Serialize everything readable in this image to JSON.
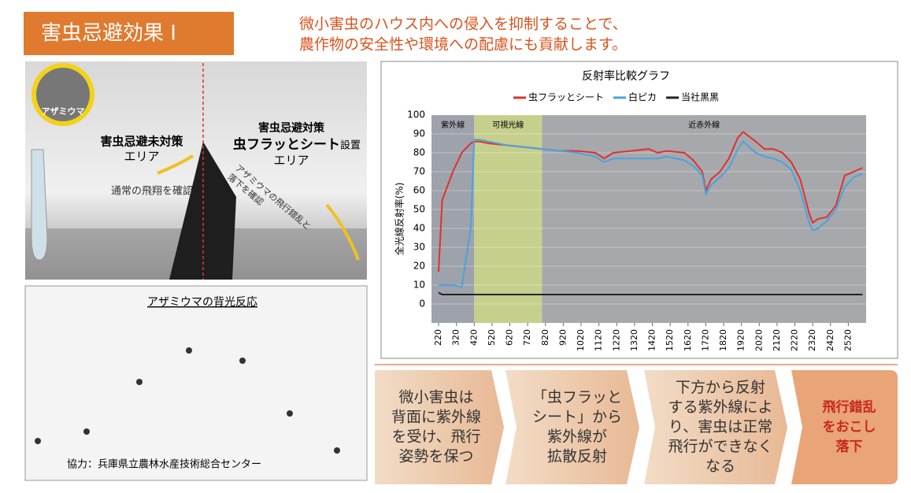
{
  "header": {
    "title": "害虫忌避効果 I",
    "lead": [
      "微小害虫のハウス内への侵入を抑制することで、",
      "農作物の安全性や環境への配慮にも貢献します。"
    ]
  },
  "photo1": {
    "callout": "アザミウマ",
    "left_title": "害虫忌避未対策",
    "left_area": "エリア",
    "left_note": "通常の飛翔を確認",
    "right_title": "害虫忌避対策",
    "right_product": "虫フラッとシート",
    "right_suffix": "設置",
    "right_area": "エリア",
    "right_note": [
      "アザミウマの飛行錯乱と",
      "落下を確認"
    ]
  },
  "photo2": {
    "title": "アザミウマの背光反応",
    "credit": "協力：兵庫県立農林水産技術総合センター"
  },
  "chart_data": {
    "type": "line",
    "title": "反射率比較グラフ",
    "y_label": "全光線反射率(%)",
    "x": [
      220,
      240,
      300,
      350,
      400,
      420,
      450,
      500,
      600,
      700,
      800,
      900,
      1000,
      1100,
      1150,
      1200,
      1300,
      1400,
      1450,
      1500,
      1600,
      1650,
      1700,
      1720,
      1750,
      1800,
      1850,
      1900,
      1930,
      2000,
      2050,
      2100,
      2150,
      2200,
      2250,
      2300,
      2320,
      2350,
      2400,
      2450,
      2500,
      2550,
      2600
    ],
    "series": [
      {
        "name": "虫フラッとシート",
        "color": "#e0312f",
        "values": [
          17,
          55,
          70,
          80,
          85,
          86,
          86,
          85,
          84,
          83,
          82,
          81,
          81,
          80,
          77,
          80,
          81,
          82,
          80,
          81,
          80,
          76,
          70,
          60,
          66,
          70,
          77,
          88,
          91,
          86,
          82,
          82,
          80,
          75,
          66,
          48,
          43,
          45,
          46,
          52,
          68,
          70,
          72
        ]
      },
      {
        "name": "白ピカ",
        "color": "#4aa3df",
        "values": [
          10,
          10,
          10,
          9,
          40,
          87,
          87,
          86,
          84,
          83,
          82,
          81,
          80,
          78,
          75,
          77,
          77,
          77,
          77,
          78,
          76,
          73,
          68,
          58,
          63,
          67,
          72,
          82,
          86,
          80,
          78,
          77,
          75,
          71,
          60,
          43,
          39,
          40,
          44,
          50,
          62,
          67,
          69
        ]
      },
      {
        "name": "当社黒黒",
        "color": "#222222",
        "values": [
          6,
          5,
          5,
          5,
          5,
          5,
          5,
          5,
          5,
          5,
          5,
          5,
          5,
          5,
          5,
          5,
          5,
          5,
          5,
          5,
          5,
          5,
          5,
          5,
          5,
          5,
          5,
          5,
          5,
          5,
          5,
          5,
          5,
          5,
          5,
          5,
          5,
          5,
          5,
          5,
          5,
          5,
          5
        ]
      }
    ],
    "regions": [
      {
        "label": "紫外線",
        "from": 180,
        "to": 420,
        "color": "#9ea2ab"
      },
      {
        "label": "可視光線",
        "from": 420,
        "to": 800,
        "color": "#c6cf8c"
      },
      {
        "label": "近赤外線",
        "from": 800,
        "to": 2620,
        "color": "#a6a8ac"
      }
    ],
    "xlim": [
      180,
      2620
    ],
    "xticks": [
      220,
      320,
      420,
      520,
      620,
      720,
      820,
      920,
      1020,
      1120,
      1220,
      1320,
      1420,
      1520,
      1620,
      1720,
      1820,
      1920,
      2020,
      2120,
      2220,
      2320,
      2420,
      2520
    ],
    "ylim": [
      -10,
      100
    ],
    "yticks": [
      0,
      10,
      20,
      30,
      40,
      50,
      60,
      70,
      80,
      90,
      100
    ],
    "grid": true,
    "legend": "top"
  },
  "flow": [
    [
      "微小害虫は",
      "背面に紫外線",
      "を受け、飛行",
      "姿勢を保つ"
    ],
    [
      "「虫フラッと",
      "シート」から",
      "紫外線が",
      "拡散反射"
    ],
    [
      "下方から反射",
      "する紫外線によ",
      "り、害虫は正常",
      "飛行ができなく",
      "なる"
    ],
    [
      "飛行錯乱",
      "をおこし",
      "落下"
    ]
  ]
}
